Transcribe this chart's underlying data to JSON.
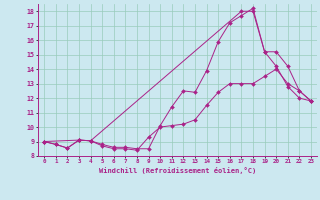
{
  "xlabel": "Windchill (Refroidissement éolien,°C)",
  "bg_color": "#cce8f0",
  "line_color": "#aa2288",
  "grid_color": "#99ccbb",
  "xlim": [
    -0.5,
    23.5
  ],
  "ylim": [
    8,
    18.5
  ],
  "xticks": [
    0,
    1,
    2,
    3,
    4,
    5,
    6,
    7,
    8,
    9,
    10,
    11,
    12,
    13,
    14,
    15,
    16,
    17,
    18,
    19,
    20,
    21,
    22,
    23
  ],
  "yticks": [
    8,
    9,
    10,
    11,
    12,
    13,
    14,
    15,
    16,
    17,
    18
  ],
  "line1_x": [
    0,
    1,
    2,
    3,
    4,
    5,
    6,
    7,
    8,
    9,
    10,
    11,
    12,
    13,
    14,
    15,
    16,
    17,
    18,
    19,
    20,
    21,
    22,
    23
  ],
  "line1_y": [
    9.0,
    8.8,
    8.55,
    9.1,
    9.05,
    8.7,
    8.5,
    8.5,
    8.4,
    9.3,
    10.0,
    10.1,
    10.2,
    10.5,
    11.5,
    12.4,
    13.0,
    13.0,
    13.0,
    13.5,
    14.0,
    13.0,
    12.5,
    11.8
  ],
  "line2_x": [
    0,
    1,
    2,
    3,
    4,
    5,
    6,
    7,
    8,
    9,
    10,
    11,
    12,
    13,
    14,
    15,
    16,
    17,
    18,
    19,
    20,
    21,
    22,
    23
  ],
  "line2_y": [
    9.0,
    8.8,
    8.55,
    9.1,
    9.05,
    8.8,
    8.6,
    8.6,
    8.5,
    8.5,
    10.1,
    11.4,
    12.5,
    12.4,
    13.9,
    15.9,
    17.2,
    17.7,
    18.2,
    15.2,
    14.2,
    12.8,
    12.0,
    11.8
  ],
  "line3_x": [
    0,
    3,
    4,
    17,
    18,
    19,
    20,
    21,
    22,
    23
  ],
  "line3_y": [
    9.0,
    9.1,
    9.05,
    18.0,
    18.0,
    15.2,
    15.2,
    14.2,
    12.5,
    11.8
  ]
}
